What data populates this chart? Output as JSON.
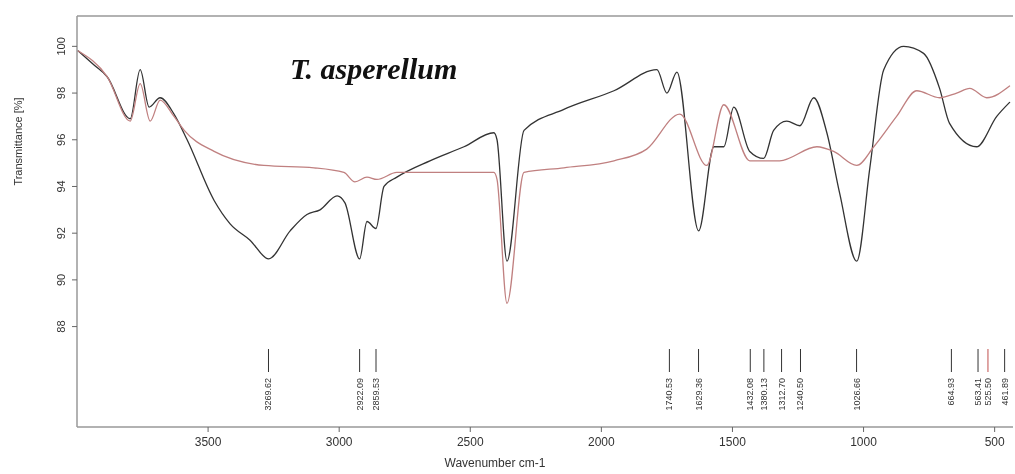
{
  "chart_data": {
    "type": "line",
    "title": "T. asperellum",
    "xlabel": "Wavenumber cm-1",
    "ylabel": "Transmittance [%]",
    "xlim": [
      4000,
      430
    ],
    "ylim": [
      83.7,
      101.3
    ],
    "xticks": [
      3500,
      3000,
      2500,
      2000,
      1500,
      1000,
      500
    ],
    "yticks": [
      88,
      90,
      92,
      94,
      96,
      98,
      100
    ],
    "grid": false,
    "marker": "none",
    "line_style": "solid",
    "series": [
      {
        "color": "#333333",
        "x": [
          3995,
          3935,
          3885,
          3797,
          3759,
          3725,
          3683,
          3630,
          3580,
          3477,
          3416,
          3340,
          3269,
          3187,
          3123,
          3073,
          3008,
          2978,
          2922,
          2894,
          2860,
          2829,
          2780,
          2654,
          2524,
          2410,
          2398,
          2360,
          2295,
          2143,
          1952,
          1788,
          1750,
          1712,
          1629,
          1571,
          1533,
          1495,
          1434,
          1381,
          1343,
          1293,
          1243,
          1190,
          1140,
          1091,
          1026,
          976,
          923,
          847,
          771,
          710,
          672,
          569,
          492,
          443
        ],
        "values": [
          99.8,
          99.2,
          98.7,
          96.9,
          99.0,
          97.4,
          97.8,
          97.1,
          96.0,
          93.4,
          92.4,
          91.7,
          90.9,
          92.1,
          92.8,
          93.0,
          93.6,
          93.3,
          90.9,
          92.5,
          92.2,
          94.0,
          94.4,
          95.1,
          95.7,
          96.3,
          96.0,
          90.8,
          96.4,
          97.3,
          98.1,
          99.0,
          98.0,
          98.9,
          92.1,
          95.7,
          95.7,
          97.4,
          95.5,
          95.2,
          96.4,
          96.8,
          96.6,
          97.8,
          96.3,
          93.7,
          90.8,
          94.8,
          99.0,
          100.0,
          99.7,
          98.2,
          96.7,
          95.7,
          97.0,
          97.6
        ]
      },
      {
        "color": "#c08080",
        "x": [
          3995,
          3885,
          3797,
          3759,
          3721,
          3683,
          3630,
          3591,
          3477,
          3287,
          3096,
          2982,
          2940,
          2894,
          2856,
          2780,
          2410,
          2398,
          2360,
          2295,
          2143,
          1952,
          1827,
          1701,
          1598,
          1533,
          1434,
          1320,
          1178,
          1114,
          1026,
          961,
          874,
          797,
          710,
          645,
          595,
          530,
          443
        ],
        "values": [
          99.8,
          98.7,
          96.8,
          98.4,
          96.8,
          97.7,
          97.0,
          96.4,
          95.5,
          94.9,
          94.8,
          94.6,
          94.2,
          94.4,
          94.3,
          94.6,
          94.6,
          94.3,
          89.0,
          94.6,
          94.8,
          95.1,
          95.6,
          97.1,
          94.9,
          97.5,
          95.1,
          95.1,
          95.7,
          95.5,
          94.9,
          95.7,
          97.0,
          98.1,
          97.8,
          98.0,
          98.2,
          97.8,
          98.3
        ]
      }
    ],
    "ref_lines": [
      {
        "axis": "x",
        "value": 3269.62,
        "label": "3269.62",
        "color": "#333333"
      },
      {
        "axis": "x",
        "value": 2922.09,
        "label": "2922.09",
        "color": "#333333"
      },
      {
        "axis": "x",
        "value": 2859.53,
        "label": "2859.53",
        "color": "#333333"
      },
      {
        "axis": "x",
        "value": 1740.53,
        "label": "1740.53",
        "color": "#333333"
      },
      {
        "axis": "x",
        "value": 1629.36,
        "label": "1629.36",
        "color": "#333333"
      },
      {
        "axis": "x",
        "value": 1432.08,
        "label": "1432.08",
        "color": "#333333"
      },
      {
        "axis": "x",
        "value": 1380.13,
        "label": "1380.13",
        "color": "#333333"
      },
      {
        "axis": "x",
        "value": 1312.7,
        "label": "1312.70",
        "color": "#333333"
      },
      {
        "axis": "x",
        "value": 1240.5,
        "label": "1240.50",
        "color": "#333333"
      },
      {
        "axis": "x",
        "value": 1026.66,
        "label": "1026.66",
        "color": "#333333"
      },
      {
        "axis": "x",
        "value": 664.93,
        "label": "664.93",
        "color": "#333333"
      },
      {
        "axis": "x",
        "value": 563.41,
        "label": "563.41",
        "color": "#333333"
      },
      {
        "axis": "x",
        "value": 525.5,
        "label": "525.50",
        "color": "#c0504d"
      },
      {
        "axis": "x",
        "value": 461.89,
        "label": "461.89",
        "color": "#333333"
      }
    ]
  }
}
